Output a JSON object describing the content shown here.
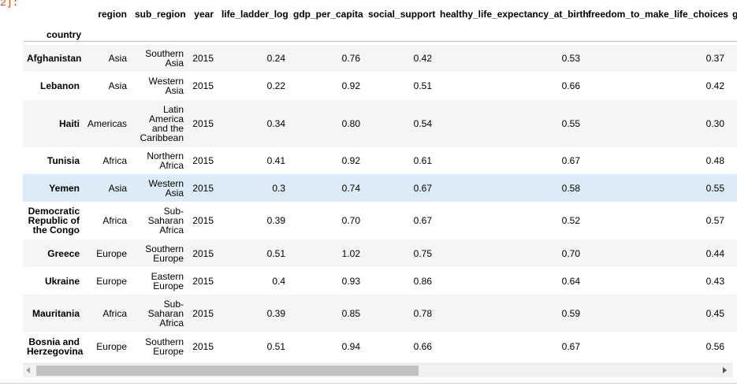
{
  "prompt": "2]:",
  "dataframe": {
    "index_name": "country",
    "columns": [
      "region",
      "sub_region",
      "year",
      "life_ladder_log",
      "gdp_per_capita",
      "social_support",
      "healthy_life_expectancy_at_birth",
      "freedom_to_make_life_choices",
      "g"
    ],
    "rows": [
      {
        "country": "Afghanistan",
        "region": "Asia",
        "sub_region": "Southern Asia",
        "year": "2015",
        "life_ladder_log": "0.24",
        "gdp_per_capita": "0.76",
        "social_support": "0.42",
        "healthy_life_expectancy_at_birth": "0.53",
        "freedom_to_make_life_choices": "0.37"
      },
      {
        "country": "Lebanon",
        "region": "Asia",
        "sub_region": "Western Asia",
        "year": "2015",
        "life_ladder_log": "0.22",
        "gdp_per_capita": "0.92",
        "social_support": "0.51",
        "healthy_life_expectancy_at_birth": "0.66",
        "freedom_to_make_life_choices": "0.42"
      },
      {
        "country": "Haiti",
        "region": "Americas",
        "sub_region": "Latin America and the Caribbean",
        "year": "2015",
        "life_ladder_log": "0.34",
        "gdp_per_capita": "0.80",
        "social_support": "0.54",
        "healthy_life_expectancy_at_birth": "0.55",
        "freedom_to_make_life_choices": "0.30"
      },
      {
        "country": "Tunisia",
        "region": "Africa",
        "sub_region": "Northern Africa",
        "year": "2015",
        "life_ladder_log": "0.41",
        "gdp_per_capita": "0.92",
        "social_support": "0.61",
        "healthy_life_expectancy_at_birth": "0.67",
        "freedom_to_make_life_choices": "0.48"
      },
      {
        "country": "Yemen",
        "region": "Asia",
        "sub_region": "Western Asia",
        "year": "2015",
        "life_ladder_log": "0.3",
        "gdp_per_capita": "0.74",
        "social_support": "0.67",
        "healthy_life_expectancy_at_birth": "0.58",
        "freedom_to_make_life_choices": "0.55"
      },
      {
        "country": "Democratic Republic of the Congo",
        "region": "Africa",
        "sub_region": "Sub-Saharan Africa",
        "year": "2015",
        "life_ladder_log": "0.39",
        "gdp_per_capita": "0.70",
        "social_support": "0.67",
        "healthy_life_expectancy_at_birth": "0.52",
        "freedom_to_make_life_choices": "0.57"
      },
      {
        "country": "Greece",
        "region": "Europe",
        "sub_region": "Southern Europe",
        "year": "2015",
        "life_ladder_log": "0.51",
        "gdp_per_capita": "1.02",
        "social_support": "0.75",
        "healthy_life_expectancy_at_birth": "0.70",
        "freedom_to_make_life_choices": "0.44"
      },
      {
        "country": "Ukraine",
        "region": "Europe",
        "sub_region": "Eastern Europe",
        "year": "2015",
        "life_ladder_log": "0.4",
        "gdp_per_capita": "0.93",
        "social_support": "0.86",
        "healthy_life_expectancy_at_birth": "0.64",
        "freedom_to_make_life_choices": "0.43"
      },
      {
        "country": "Mauritania",
        "region": "Africa",
        "sub_region": "Sub-Saharan Africa",
        "year": "2015",
        "life_ladder_log": "0.39",
        "gdp_per_capita": "0.85",
        "social_support": "0.78",
        "healthy_life_expectancy_at_birth": "0.59",
        "freedom_to_make_life_choices": "0.45"
      },
      {
        "country": "Bosnia and Herzegovina",
        "region": "Europe",
        "sub_region": "Southern Europe",
        "year": "2015",
        "life_ladder_log": "0.51",
        "gdp_per_capita": "0.94",
        "social_support": "0.66",
        "healthy_life_expectancy_at_birth": "0.67",
        "freedom_to_make_life_choices": "0.56"
      }
    ],
    "hovered_row": 4
  },
  "colors": {
    "prompt": "#d84315",
    "row_stripe": "#f5f5f5",
    "row_hover": "#dcebf8"
  }
}
